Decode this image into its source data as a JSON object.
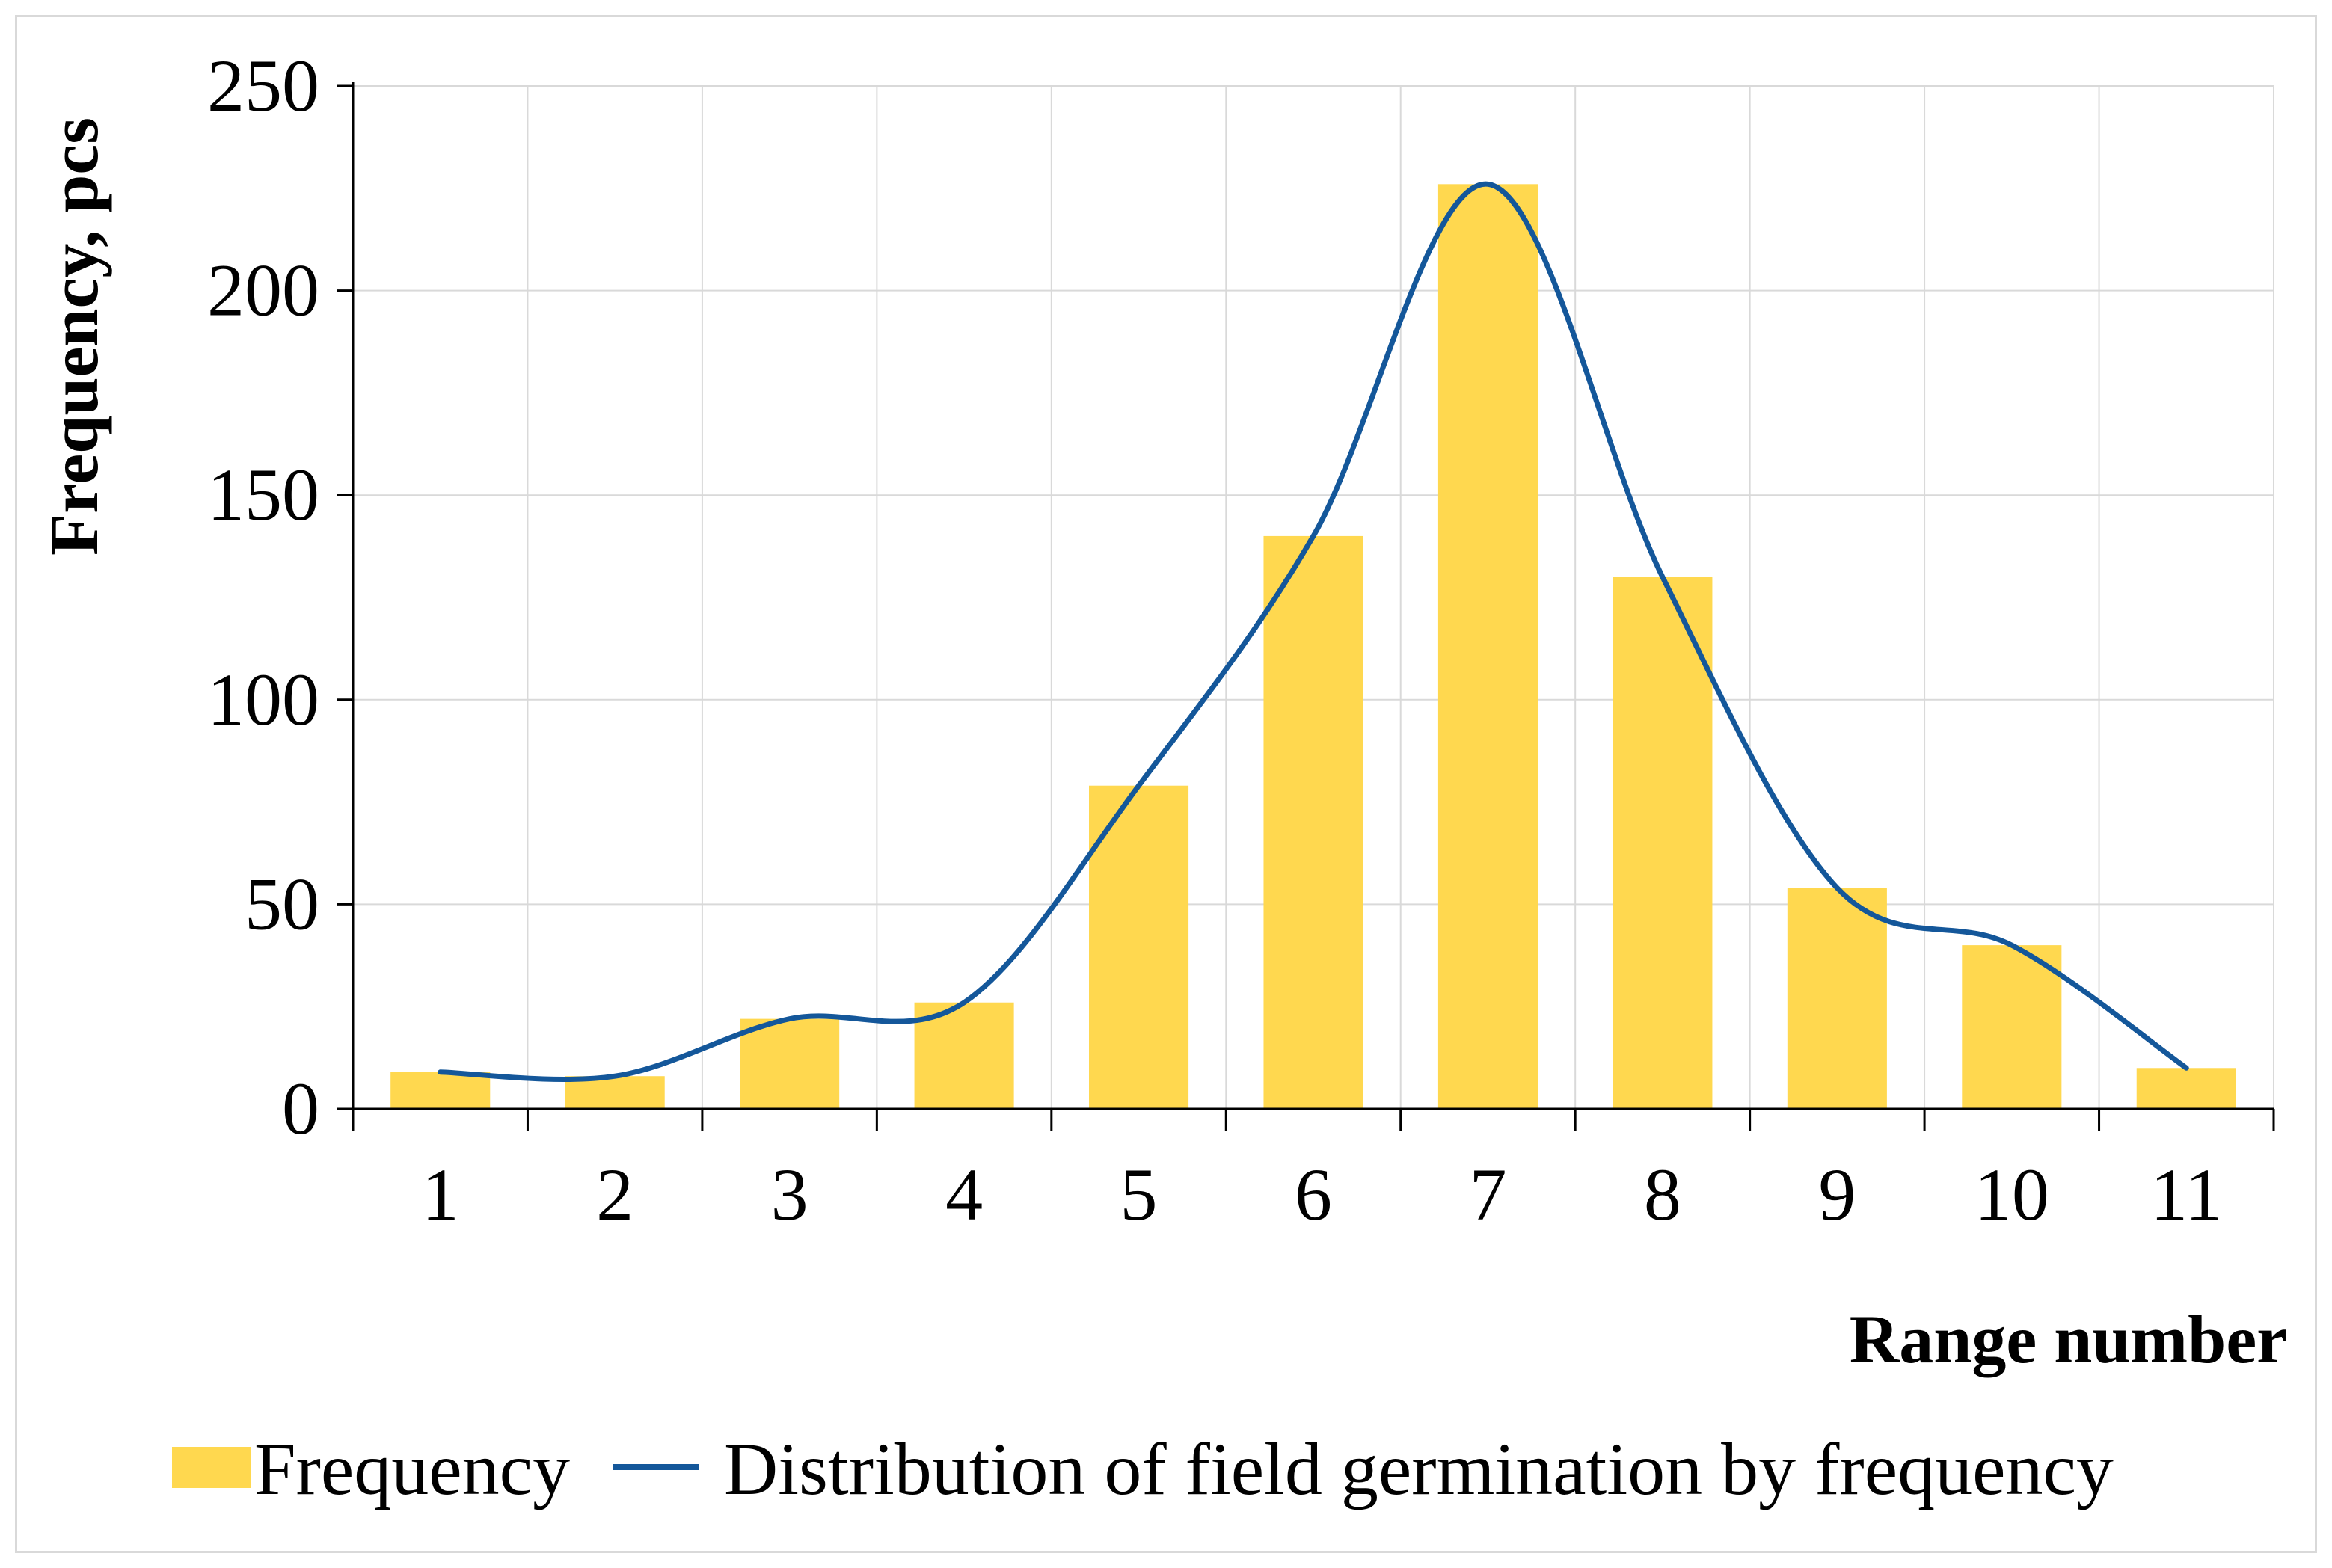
{
  "chart_data": {
    "type": "bar",
    "title": "",
    "xlabel": "Range number",
    "ylabel": "Frequency, pcs",
    "categories": [
      "1",
      "2",
      "3",
      "4",
      "5",
      "6",
      "7",
      "8",
      "9",
      "10",
      "11"
    ],
    "ylim": [
      0,
      250
    ],
    "yticks": [
      "0",
      "50",
      "100",
      "150",
      "200",
      "250"
    ],
    "grid": true,
    "series": [
      {
        "name": "Frequency",
        "type": "bar",
        "color": "#FFD84F",
        "values": [
          9,
          8,
          22,
          26,
          79,
          140,
          226,
          130,
          54,
          40,
          10
        ]
      },
      {
        "name": "Distribution of field germination by frequency",
        "type": "line",
        "smooth": true,
        "color": "#14579A",
        "values": [
          9,
          8,
          22,
          26,
          79,
          140,
          226,
          130,
          54,
          40,
          10
        ]
      }
    ],
    "legend_position": "bottom"
  }
}
